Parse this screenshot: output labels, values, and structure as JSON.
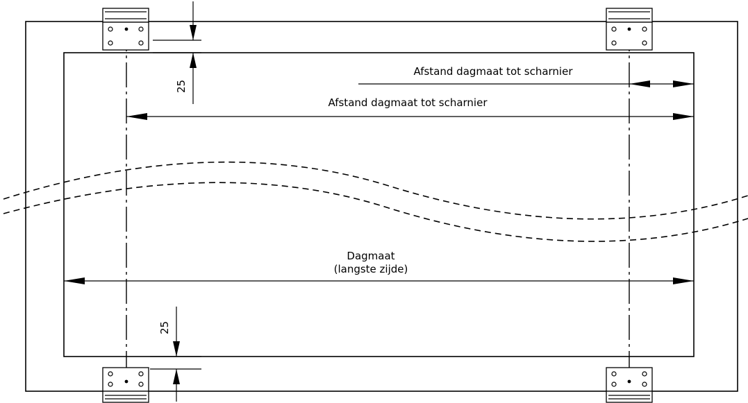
{
  "labels": {
    "hinge_distance_top": "Afstand dagmaat tot scharnier",
    "hinge_distance_mid": "Afstand dagmaat tot scharnier",
    "daylight_line1": "Dagmaat",
    "daylight_line2": "(langste zijde)",
    "offset_top": "25",
    "offset_bottom": "25"
  },
  "colors": {
    "line": "#000000",
    "background": "#ffffff"
  }
}
